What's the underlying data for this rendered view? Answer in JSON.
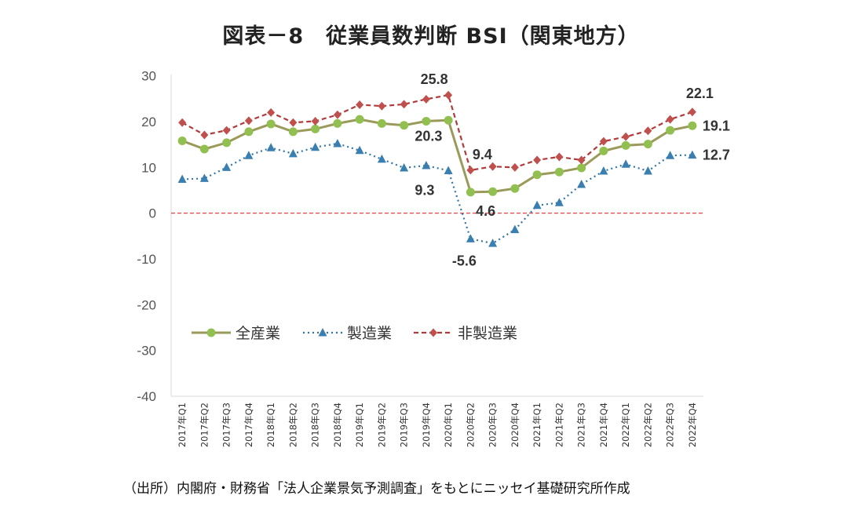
{
  "chart_data": {
    "type": "line",
    "title": "図表－8　従業員数判断 BSI（関東地方）",
    "source": "（出所）内閣府・財務省「法人企業景気予測調査」をもとにニッセイ基礎研究所作成",
    "categories": [
      "2017年Q1",
      "2017年Q2",
      "2017年Q3",
      "2017年Q4",
      "2018年Q1",
      "2018年Q2",
      "2018年Q3",
      "2018年Q4",
      "2019年Q1",
      "2019年Q2",
      "2019年Q3",
      "2019年Q4",
      "2020年Q1",
      "2020年Q2",
      "2020年Q3",
      "2020年Q4",
      "2021年Q1",
      "2021年Q2",
      "2021年Q3",
      "2021年Q4",
      "2022年Q1",
      "2022年Q2",
      "2022年Q3",
      "2022年Q4"
    ],
    "ylim": [
      -40,
      30
    ],
    "yticks": [
      30,
      20,
      10,
      0,
      -10,
      -20,
      -30,
      -40
    ],
    "grid": false,
    "legend_position": "lower-left",
    "series": [
      {
        "name": "全産業",
        "color": "#9a9a5a",
        "marker": "circle",
        "marker_color": "#92c050",
        "style": "solid",
        "values": [
          15.8,
          14.0,
          15.4,
          17.8,
          19.5,
          17.8,
          18.4,
          19.6,
          20.5,
          19.6,
          19.2,
          20.1,
          20.3,
          4.6,
          4.7,
          5.4,
          8.4,
          9.0,
          9.9,
          13.6,
          14.8,
          15.1,
          18.1,
          19.1
        ]
      },
      {
        "name": "製造業",
        "color": "#2e76a8",
        "marker": "triangle",
        "marker_color": "#3a7fb0",
        "style": "dotted",
        "values": [
          7.4,
          7.6,
          10.0,
          12.6,
          14.3,
          13.0,
          14.4,
          15.2,
          13.7,
          11.8,
          9.9,
          10.4,
          9.3,
          -5.6,
          -6.6,
          -3.6,
          1.7,
          2.3,
          6.3,
          9.2,
          10.7,
          9.2,
          12.6,
          12.7
        ]
      },
      {
        "name": "非製造業",
        "color": "#b03a3a",
        "marker": "diamond",
        "marker_color": "#c0504d",
        "style": "dashed",
        "values": [
          19.8,
          17.1,
          18.1,
          20.2,
          22.0,
          19.8,
          20.1,
          21.5,
          23.7,
          23.4,
          23.8,
          24.9,
          25.8,
          9.4,
          10.2,
          10.0,
          11.6,
          12.3,
          11.6,
          15.7,
          16.7,
          18.0,
          20.5,
          22.1
        ]
      }
    ],
    "annotations": [
      "25.8",
      "22.1",
      "19.1",
      "12.7",
      "20.3",
      "9.3",
      "9.4",
      "4.6",
      "-5.6"
    ],
    "reference_line": {
      "y": 0,
      "color": "#e03030",
      "style": "dashed"
    }
  }
}
